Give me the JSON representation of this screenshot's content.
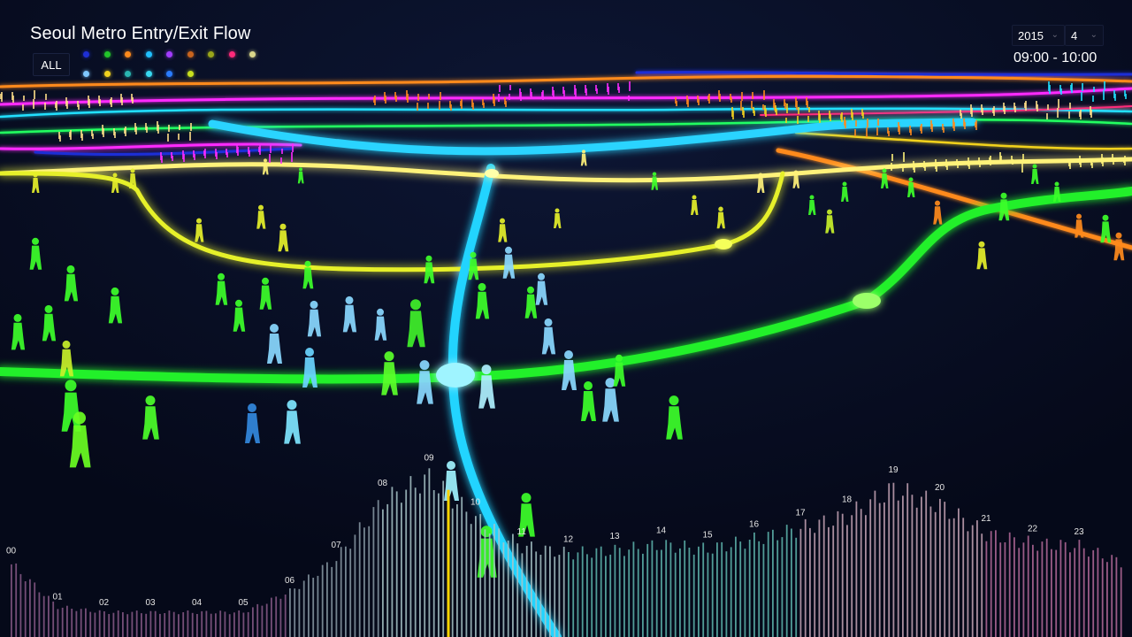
{
  "header": {
    "title": "Seoul Metro Entry/Exit Flow",
    "all_label": "ALL",
    "legend": [
      {
        "color": "#1e2fd6"
      },
      {
        "color": "#22c52a"
      },
      {
        "color": "#ff8a1c"
      },
      {
        "color": "#20c0ff"
      },
      {
        "color": "#a23cff"
      },
      {
        "color": "#c8641e"
      },
      {
        "color": "#9aa61a"
      },
      {
        "color": "#ff2a7a"
      },
      {
        "color": "#d9d68a"
      },
      {
        "color": "#7fc8ff"
      },
      {
        "color": "#f2d21e"
      },
      {
        "color": "#2ab6b0"
      },
      {
        "color": "#38d8f0"
      },
      {
        "color": "#2a7cff"
      },
      {
        "color": "#c8e01e"
      }
    ]
  },
  "controls": {
    "year": "2015",
    "month": "4",
    "time_range": "09:00 - 10:00"
  },
  "chart_data": {
    "type": "bar",
    "hour_labels": [
      "00",
      "01",
      "02",
      "03",
      "04",
      "05",
      "06",
      "07",
      "08",
      "09",
      "10",
      "11",
      "12",
      "13",
      "14",
      "15",
      "16",
      "17",
      "18",
      "19",
      "20",
      "21",
      "22",
      "23"
    ],
    "hour_label_levels": [
      0.53,
      0.22,
      0.18,
      0.18,
      0.18,
      0.18,
      0.33,
      0.57,
      0.99,
      1.16,
      0.86,
      0.66,
      0.61,
      0.63,
      0.67,
      0.64,
      0.71,
      0.79,
      0.88,
      1.08,
      0.96,
      0.75,
      0.68,
      0.66
    ],
    "selected_hour": "09",
    "ylim": [
      0,
      1.2
    ]
  },
  "scene_icons": {
    "walker": "walking-person-icon",
    "station": "station-node-icon"
  }
}
